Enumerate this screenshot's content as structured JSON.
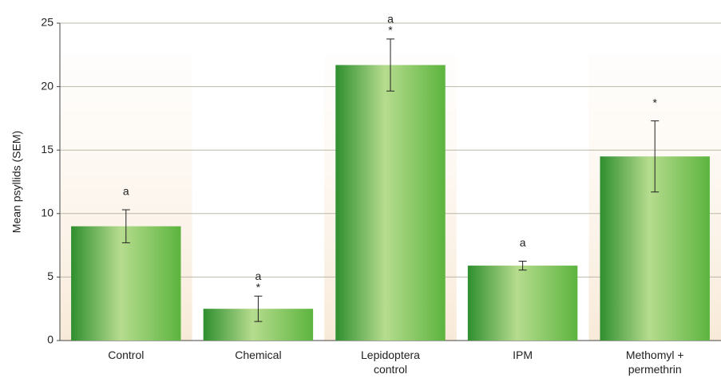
{
  "chart_data": {
    "type": "bar",
    "y_label": "Mean psyllids (SEM)",
    "categories": [
      "Control",
      "Chemical",
      "Lepidoptera control",
      "IPM",
      "Methomyl + permethrin"
    ],
    "values": [
      9,
      2.5,
      21.7,
      5.9,
      14.5
    ],
    "errors": [
      1.3,
      1.0,
      2.05,
      0.35,
      2.8
    ],
    "annotations": [
      [
        "a"
      ],
      [
        "a",
        "*"
      ],
      [
        "a",
        "*"
      ],
      [
        "a"
      ],
      [
        "*"
      ]
    ],
    "color": "#4aa83c",
    "ylim": [
      0,
      25
    ],
    "yticks": [
      0,
      5,
      10,
      15,
      20,
      25
    ],
    "grid": true
  }
}
